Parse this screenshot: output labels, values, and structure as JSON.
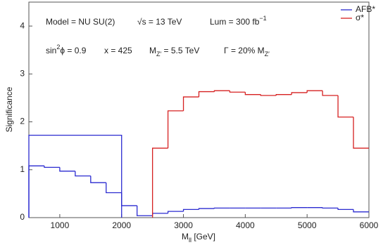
{
  "chart_data": {
    "type": "step",
    "xlabel": [
      {
        "t": "M"
      },
      {
        "t": "ll",
        "sub": true
      },
      {
        "t": "  [GeV]"
      }
    ],
    "ylabel": "Significance",
    "xlim": [
      500,
      6000
    ],
    "xticks": [
      1000,
      2000,
      3000,
      4000,
      5000,
      6000
    ],
    "ylim": [
      0,
      4.5
    ],
    "yticks": [
      0,
      1,
      2,
      3,
      4
    ],
    "series": [
      {
        "name": "AFB*",
        "color": "#2a2ad0",
        "bins": [
          500,
          750,
          1000,
          1250,
          1500,
          1750,
          2000,
          2250,
          2500,
          2750,
          3000,
          3250,
          3500,
          3750,
          4000,
          4250,
          4500,
          4750,
          5000,
          5250,
          5500,
          5750,
          6000
        ],
        "values": [
          1.08,
          1.05,
          0.97,
          0.87,
          0.73,
          0.52,
          0.25,
          0.04,
          0.09,
          0.13,
          0.17,
          0.19,
          0.2,
          0.2,
          0.2,
          0.2,
          0.2,
          0.21,
          0.21,
          0.2,
          0.17,
          0.12
        ]
      },
      {
        "color": "#2a2ad0",
        "bins": [
          500,
          2000
        ],
        "values": [
          1.72
        ]
      },
      {
        "name": "σ*",
        "color": "#d62020",
        "bins": [
          2500,
          2750,
          3000,
          3250,
          3500,
          3750,
          4000,
          4250,
          4500,
          4750,
          5000,
          5250,
          5500,
          5750,
          6000
        ],
        "values": [
          1.45,
          2.23,
          2.52,
          2.63,
          2.65,
          2.62,
          2.57,
          2.55,
          2.57,
          2.61,
          2.65,
          2.55,
          2.1,
          1.45
        ]
      }
    ],
    "annotations": [
      [
        {
          "t": "Model = NU SU(2)"
        }
      ],
      [
        {
          "t": "√s = 13 TeV"
        }
      ],
      [
        {
          "t": "Lum = 300 fb"
        },
        {
          "t": "−1",
          "sup": true
        }
      ],
      [
        {
          "t": "sin"
        },
        {
          "t": "2",
          "sup": true
        },
        {
          "t": "ϕ = 0.9"
        }
      ],
      [
        {
          "t": "x = 425"
        }
      ],
      [
        {
          "t": "M"
        },
        {
          "t": "Z′",
          "sub": true
        },
        {
          "t": " = 5.5 TeV"
        }
      ],
      [
        {
          "t": "Γ = 20% M"
        },
        {
          "t": "Z′",
          "sub": true
        }
      ]
    ]
  }
}
